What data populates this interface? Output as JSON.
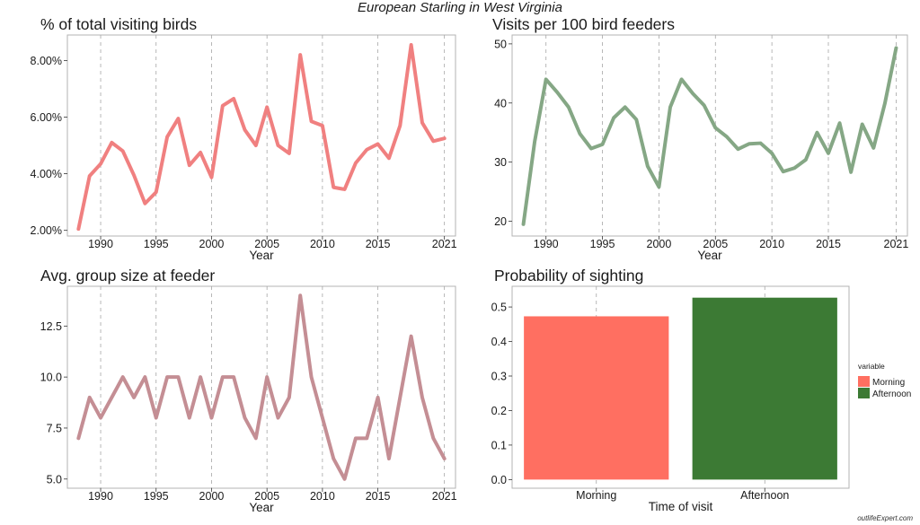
{
  "page": {
    "title": "European Starling in West Virginia",
    "watermark": "outlifeExpert.com"
  },
  "chart_data": [
    {
      "type": "line",
      "title": "% of total visiting birds",
      "xlabel": "Year",
      "ylabel": "",
      "color": "#F08080",
      "xlim": [
        1987,
        2022
      ],
      "ylim": [
        1.8,
        8.9
      ],
      "x_ticks": [
        1990,
        1995,
        2000,
        2005,
        2010,
        2015,
        2021
      ],
      "x_tick_labels": [
        "1990",
        "1995",
        "2000",
        "2005",
        "2010",
        "2015",
        "2021"
      ],
      "y_ticks": [
        2,
        4,
        6,
        8
      ],
      "y_tick_labels": [
        "2.00%",
        "4.00%",
        "6.00%",
        "8.00%"
      ],
      "grid": "vertical dashed",
      "x": [
        1988,
        1989,
        1990,
        1991,
        1992,
        1993,
        1994,
        1995,
        1996,
        1997,
        1998,
        1999,
        2000,
        2001,
        2002,
        2003,
        2004,
        2005,
        2006,
        2007,
        2008,
        2009,
        2010,
        2011,
        2012,
        2013,
        2014,
        2015,
        2016,
        2017,
        2018,
        2019,
        2020,
        2021
      ],
      "values": [
        2.05,
        3.92,
        4.35,
        5.1,
        4.8,
        3.95,
        2.95,
        3.35,
        5.3,
        5.95,
        4.3,
        4.75,
        3.87,
        6.4,
        6.65,
        5.55,
        5.0,
        6.35,
        5.0,
        4.72,
        8.2,
        5.85,
        5.7,
        3.52,
        3.45,
        4.38,
        4.85,
        5.05,
        4.55,
        5.7,
        8.55,
        5.8,
        5.15,
        5.25
      ]
    },
    {
      "type": "line",
      "title": "Visits per 100 bird feeders",
      "xlabel": "Year",
      "ylabel": "",
      "color": "#85A785",
      "xlim": [
        1987,
        2022
      ],
      "ylim": [
        17.5,
        51.5
      ],
      "x_ticks": [
        1990,
        1995,
        2000,
        2005,
        2010,
        2015,
        2021
      ],
      "x_tick_labels": [
        "1990",
        "1995",
        "2000",
        "2005",
        "2010",
        "2015",
        "2021"
      ],
      "y_ticks": [
        20,
        30,
        40,
        50
      ],
      "y_tick_labels": [
        "20",
        "30",
        "40",
        "50"
      ],
      "grid": "vertical dashed",
      "x": [
        1988,
        1989,
        1990,
        1991,
        1992,
        1993,
        1994,
        1995,
        1996,
        1997,
        1998,
        1999,
        2000,
        2001,
        2002,
        2003,
        2004,
        2005,
        2006,
        2007,
        2008,
        2009,
        2010,
        2011,
        2012,
        2013,
        2014,
        2015,
        2016,
        2017,
        2018,
        2019,
        2020,
        2021
      ],
      "values": [
        19.5,
        33.5,
        44.0,
        41.8,
        39.3,
        34.8,
        32.3,
        33.0,
        37.5,
        39.3,
        37.2,
        29.3,
        25.8,
        39.3,
        44.0,
        41.6,
        39.6,
        35.8,
        34.3,
        32.2,
        33.1,
        33.2,
        31.5,
        28.4,
        29.0,
        30.4,
        35.0,
        31.5,
        36.6,
        28.3,
        36.4,
        32.4,
        39.9,
        49.3
      ]
    },
    {
      "type": "line",
      "title": "Avg. group size at feeder",
      "xlabel": "Year",
      "ylabel": "",
      "color": "#C48E94",
      "xlim": [
        1987,
        2022
      ],
      "ylim": [
        4.55,
        14.45
      ],
      "x_ticks": [
        1990,
        1995,
        2000,
        2005,
        2010,
        2015,
        2021
      ],
      "x_tick_labels": [
        "1990",
        "1995",
        "2000",
        "2005",
        "2010",
        "2015",
        "2021"
      ],
      "y_ticks": [
        5,
        7.5,
        10,
        12.5
      ],
      "y_tick_labels": [
        "5.0",
        "7.5",
        "10.0",
        "12.5"
      ],
      "grid": "vertical dashed",
      "x": [
        1988,
        1989,
        1990,
        1991,
        1992,
        1993,
        1994,
        1995,
        1996,
        1997,
        1998,
        1999,
        2000,
        2001,
        2002,
        2003,
        2004,
        2005,
        2006,
        2007,
        2008,
        2009,
        2010,
        2011,
        2012,
        2013,
        2014,
        2015,
        2016,
        2017,
        2018,
        2019,
        2020,
        2021
      ],
      "values": [
        7,
        9,
        8,
        9,
        10,
        9,
        10,
        8,
        10,
        10,
        8,
        10,
        8,
        10,
        10,
        8,
        7,
        10,
        8,
        9,
        14,
        10,
        8,
        6,
        5,
        7,
        7,
        9,
        6,
        9,
        12,
        9,
        7,
        6
      ]
    },
    {
      "type": "bar",
      "title": "Probability of sighting",
      "xlabel": "Time of visit",
      "ylabel": "",
      "categories": [
        "Morning",
        "Afternoon"
      ],
      "values": [
        0.473,
        0.527
      ],
      "colors": [
        "#FF6F61",
        "#3C7A34"
      ],
      "ylim": [
        -0.025,
        0.56
      ],
      "y_ticks": [
        0,
        0.1,
        0.2,
        0.3,
        0.4,
        0.5
      ],
      "y_tick_labels": [
        "0.0",
        "0.1",
        "0.2",
        "0.3",
        "0.4",
        "0.5"
      ],
      "grid": "vertical dashed",
      "legend": {
        "title": "variable",
        "position": "right",
        "entries": [
          "Morning",
          "Afternoon"
        ]
      }
    }
  ]
}
